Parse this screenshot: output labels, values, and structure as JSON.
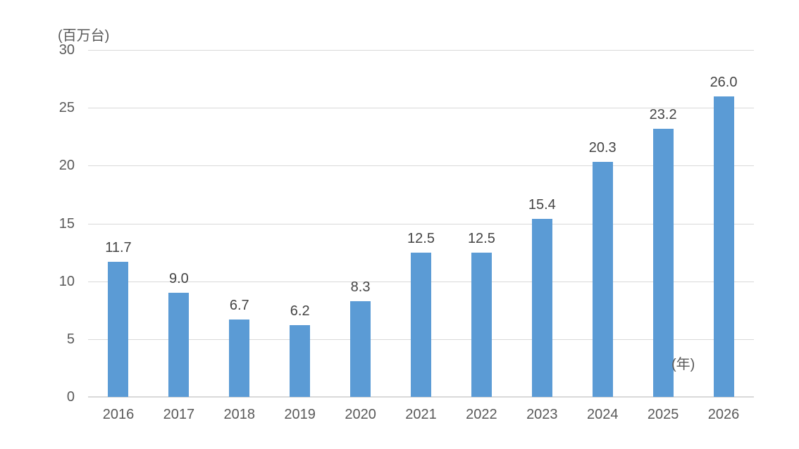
{
  "chart_data": {
    "type": "bar",
    "title": "",
    "unit_label": "(百万台)",
    "x_axis_suffix": "(年)",
    "categories": [
      "2016",
      "2017",
      "2018",
      "2019",
      "2020",
      "2021",
      "2022",
      "2023",
      "2024",
      "2025",
      "2026"
    ],
    "values": [
      11.7,
      9.0,
      6.7,
      6.2,
      8.3,
      12.5,
      12.5,
      15.4,
      20.3,
      23.2,
      26.0
    ],
    "value_labels": [
      "11.7",
      "9.0",
      "6.7",
      "6.2",
      "8.3",
      "12.5",
      "12.5",
      "15.4",
      "20.3",
      "23.2",
      "26.0"
    ],
    "xlabel": "",
    "ylabel": "",
    "ylim": [
      0,
      30
    ],
    "yticks": [
      0,
      5,
      10,
      15,
      20,
      25,
      30
    ],
    "grid": true,
    "legend": "none",
    "colors": {
      "bar": "#5b9bd5",
      "gridline": "#d9d9d9",
      "axis_text": "#595959",
      "data_label_text": "#444444",
      "background": "#ffffff"
    }
  }
}
